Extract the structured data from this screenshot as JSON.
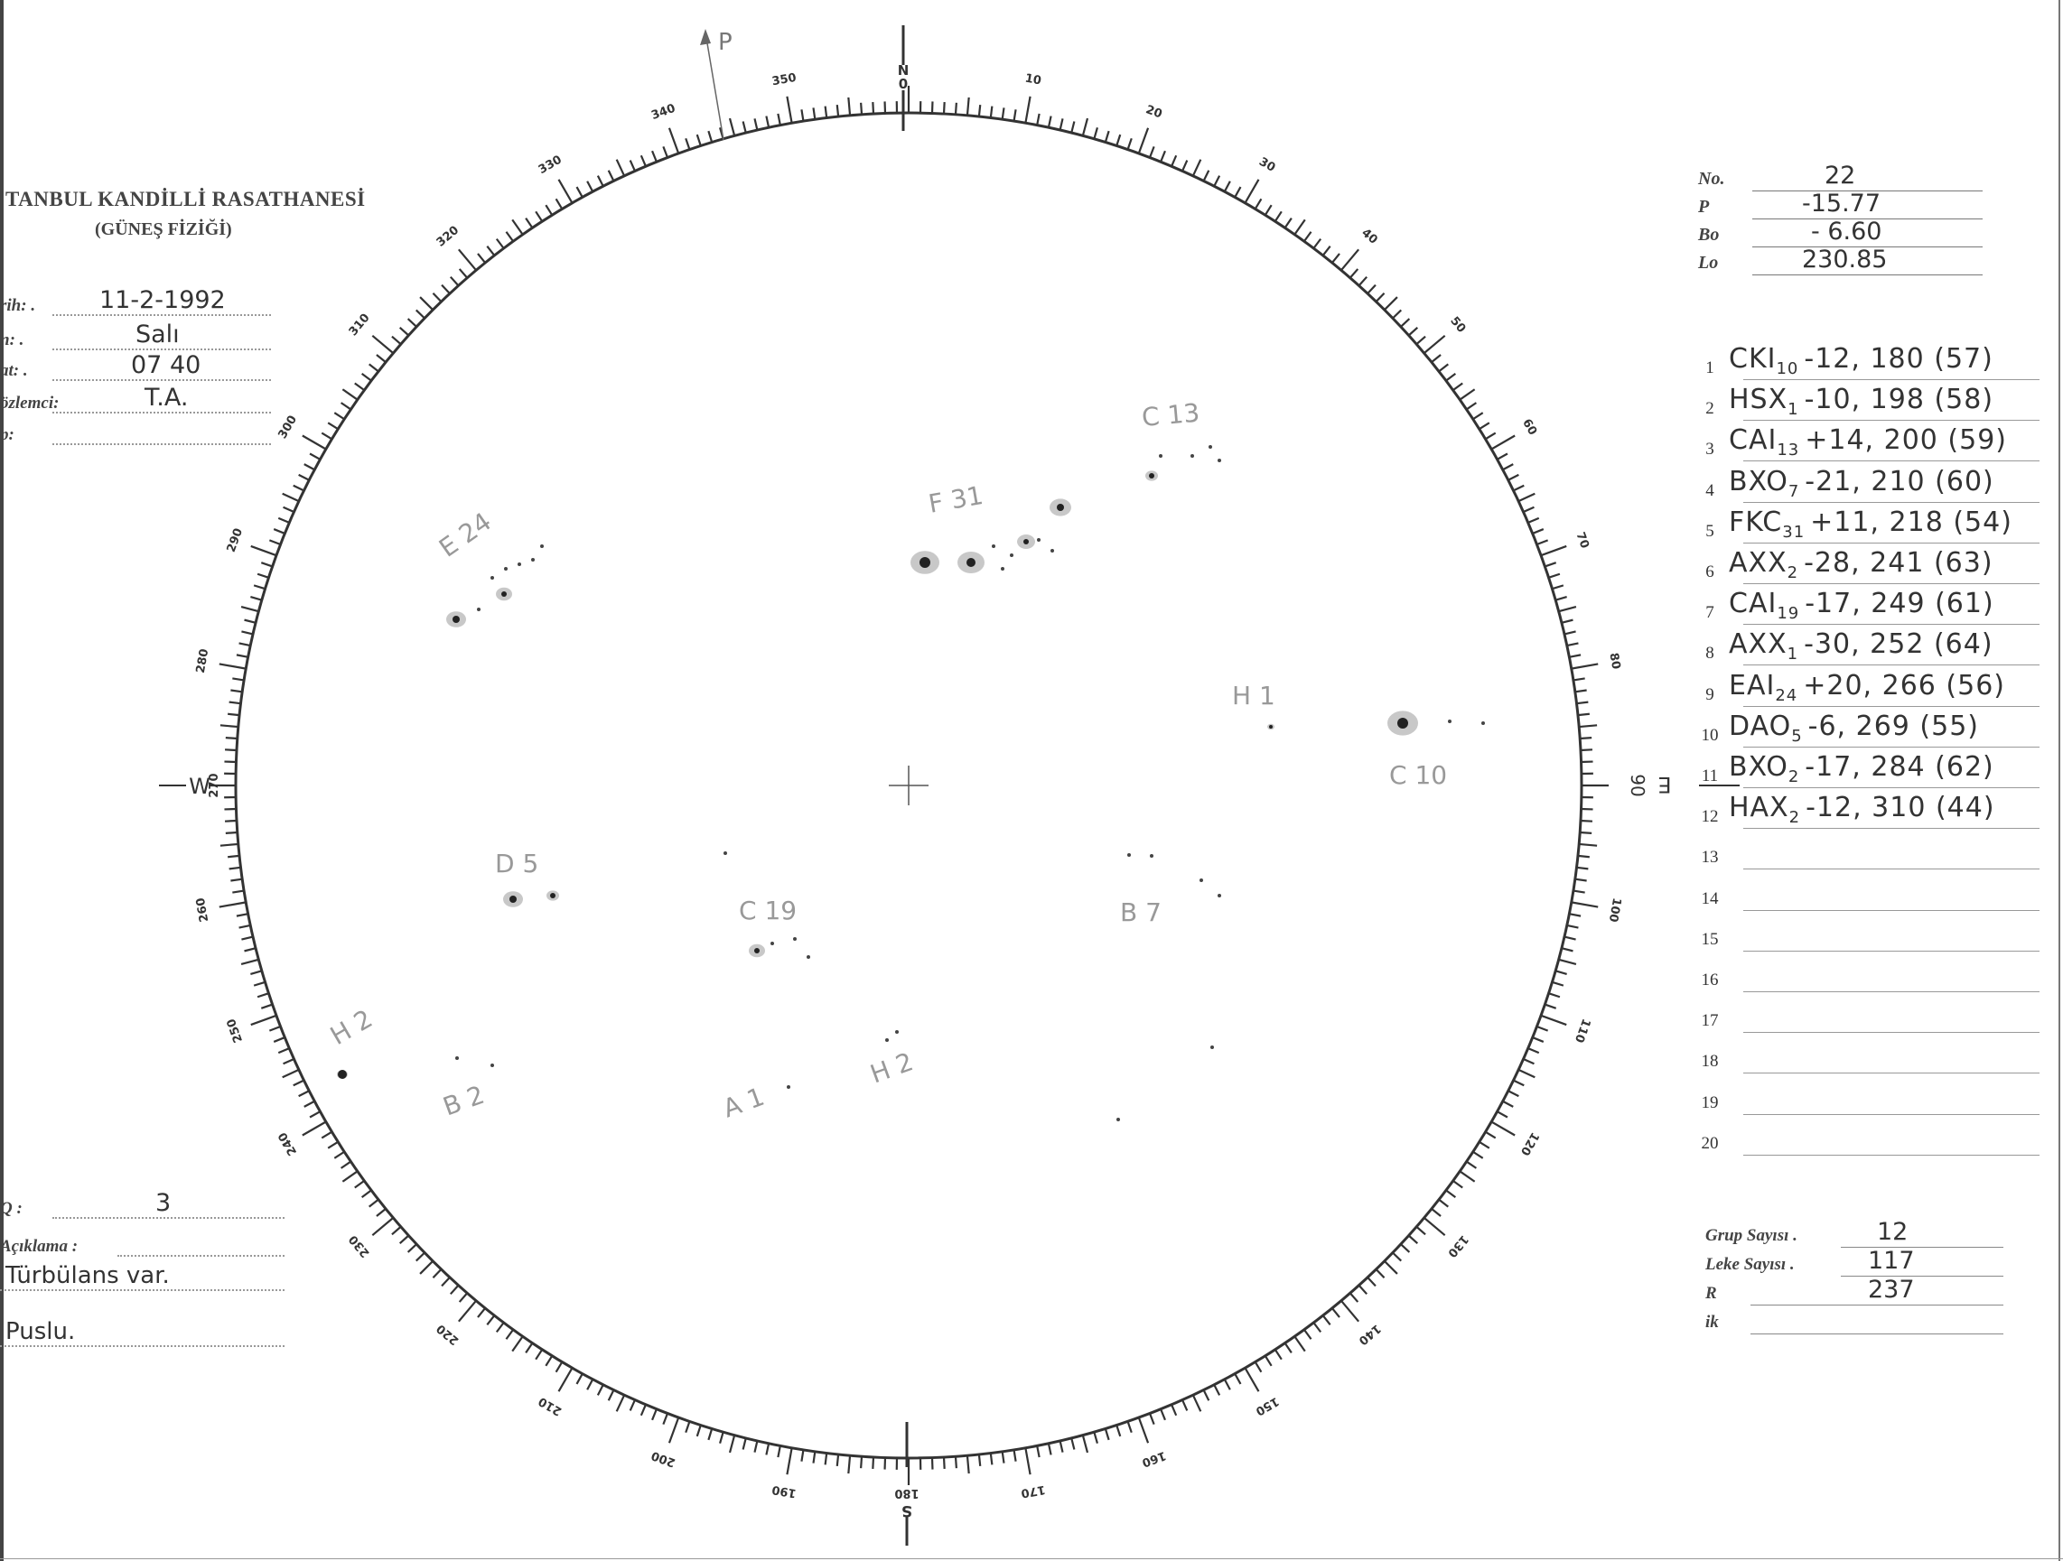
{
  "header": {
    "institution": "TANBUL KANDİLLİ RASATHANESİ",
    "department": "(GÜNEŞ FİZİĞİ)"
  },
  "form": [
    {
      "label": "rih: .",
      "value": "11-2-1992"
    },
    {
      "label": "n: .",
      "value": "Salı"
    },
    {
      "label": "at: .",
      "value": "07 40"
    },
    {
      "label": "özlemci:",
      "value": "T.A."
    },
    {
      "label": "p:",
      "value": ""
    }
  ],
  "notes": {
    "q_label": "Q :",
    "q_value": "3",
    "remarks_label": "Açıklama :",
    "remark_lines": [
      "Türbülans var.",
      "Puslu."
    ]
  },
  "parameters": [
    {
      "label": "No.",
      "value": "22"
    },
    {
      "label": "P",
      "value": "-15.77"
    },
    {
      "label": "Bo",
      "value": "- 6.60"
    },
    {
      "label": "Lo",
      "value": "230.85"
    }
  ],
  "groups": [
    {
      "n": "1",
      "cls": "CKI",
      "count": "10",
      "rest": "-12, 180 (57)"
    },
    {
      "n": "2",
      "cls": "HSX",
      "count": "1",
      "rest": "-10, 198 (58)"
    },
    {
      "n": "3",
      "cls": "CAI",
      "count": "13",
      "rest": "+14, 200 (59)"
    },
    {
      "n": "4",
      "cls": "BXO",
      "count": "7",
      "rest": "-21, 210 (60)"
    },
    {
      "n": "5",
      "cls": "FKC",
      "count": "31",
      "rest": "+11, 218 (54)"
    },
    {
      "n": "6",
      "cls": "AXX",
      "count": "2",
      "rest": "-28, 241 (63)"
    },
    {
      "n": "7",
      "cls": "CAI",
      "count": "19",
      "rest": "-17, 249 (61)"
    },
    {
      "n": "8",
      "cls": "AXX",
      "count": "1",
      "rest": "-30, 252 (64)"
    },
    {
      "n": "9",
      "cls": "EAI",
      "count": "24",
      "rest": "+20, 266 (56)"
    },
    {
      "n": "10",
      "cls": "DAO",
      "count": "5",
      "rest": "-6, 269 (55)"
    },
    {
      "n": "11",
      "cls": "BXO",
      "count": "2",
      "rest": "-17, 284 (62)"
    },
    {
      "n": "12",
      "cls": "HAX",
      "count": "2",
      "rest": "-12, 310 (44)"
    },
    {
      "n": "13",
      "cls": "",
      "count": "",
      "rest": ""
    },
    {
      "n": "14",
      "cls": "",
      "count": "",
      "rest": ""
    },
    {
      "n": "15",
      "cls": "",
      "count": "",
      "rest": ""
    },
    {
      "n": "16",
      "cls": "",
      "count": "",
      "rest": ""
    },
    {
      "n": "17",
      "cls": "",
      "count": "",
      "rest": ""
    },
    {
      "n": "18",
      "cls": "",
      "count": "",
      "rest": ""
    },
    {
      "n": "19",
      "cls": "",
      "count": "",
      "rest": ""
    },
    {
      "n": "20",
      "cls": "",
      "count": "",
      "rest": ""
    }
  ],
  "summary": [
    {
      "label": "Grup Sayısı .",
      "value": "12"
    },
    {
      "label": "Leke Sayısı .",
      "value": "117"
    },
    {
      "label": "R",
      "value": "237"
    },
    {
      "label": "ik",
      "value": ""
    }
  ],
  "disk": {
    "north_label": "N",
    "north_degree": "0",
    "east_label": "E",
    "west_label": "W",
    "south_label": "S",
    "p_axis_label": "P",
    "degree_labels_every": 10,
    "group_labels": [
      "C 13",
      "F 31",
      "E 24",
      "H 1",
      "C 10",
      "D 5",
      "C 19",
      "B 7",
      "H 2",
      "B 2",
      "A 1",
      "H 2"
    ]
  },
  "colors": {
    "ink": "#333333",
    "spot_penumbra": "#c8c8c8",
    "spot_umbra": "#222222"
  }
}
